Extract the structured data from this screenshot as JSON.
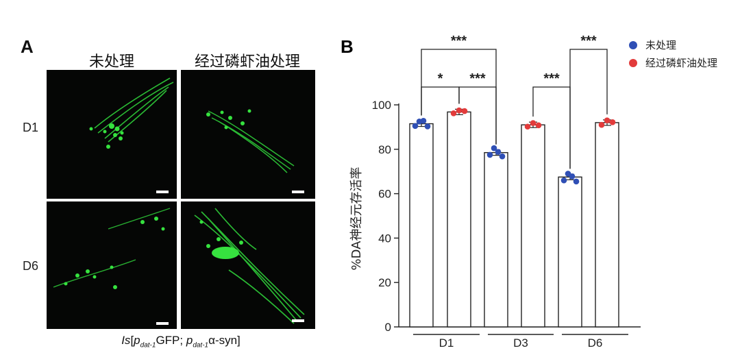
{
  "panel_a": {
    "letter": "A",
    "col_titles": [
      "未处理",
      "经过磷虾油处理"
    ],
    "row_labels": [
      "D1",
      "D6"
    ],
    "caption": {
      "prefix": "Is",
      "bracket_open": "[",
      "p1": "p",
      "sub1": "dat-1",
      "part2": "GFP; ",
      "p2": "p",
      "sub2": "dat-1",
      "part3": "α-syn]"
    }
  },
  "chart_data": {
    "type": "bar",
    "panel_letter": "B",
    "ylabel": "%DA神经元存活率",
    "ylim": [
      0,
      100
    ],
    "yticks": [
      0,
      20,
      40,
      60,
      80,
      100
    ],
    "groups": [
      "D1",
      "D3",
      "D6"
    ],
    "series": [
      {
        "name": "未处理",
        "color": "#2f4fb5",
        "values": [
          91.5,
          78.5,
          67.5
        ],
        "points": [
          [
            90.5,
            92.5,
            92.8,
            90.3
          ],
          [
            77.5,
            80.5,
            78.8,
            76.8
          ],
          [
            66.0,
            69.0,
            67.8,
            65.5
          ]
        ]
      },
      {
        "name": "经过磷虾油处理",
        "color": "#e23b3b",
        "values": [
          96.8,
          91.0,
          92.0
        ],
        "points": [
          [
            96.2,
            97.5,
            97.2
          ],
          [
            90.2,
            91.8,
            90.8
          ],
          [
            91.0,
            93.0,
            92.2
          ]
        ]
      }
    ],
    "significance": [
      {
        "label": "*",
        "from": "D1-未处理",
        "to": "D1-经过磷虾油处理"
      },
      {
        "label": "***",
        "from": "D1-未处理",
        "to": "D3-未处理"
      },
      {
        "label": "***",
        "from": "D1-经过磷虾油处理",
        "to": "D3-未处理"
      },
      {
        "label": "***",
        "from": "D3-经过磷虾油处理",
        "to": "D6-未处理"
      },
      {
        "label": "***",
        "from": "D6-未处理",
        "to": "D6-经过磷虾油处理"
      }
    ],
    "legend_position": "top-right",
    "grid": false
  }
}
